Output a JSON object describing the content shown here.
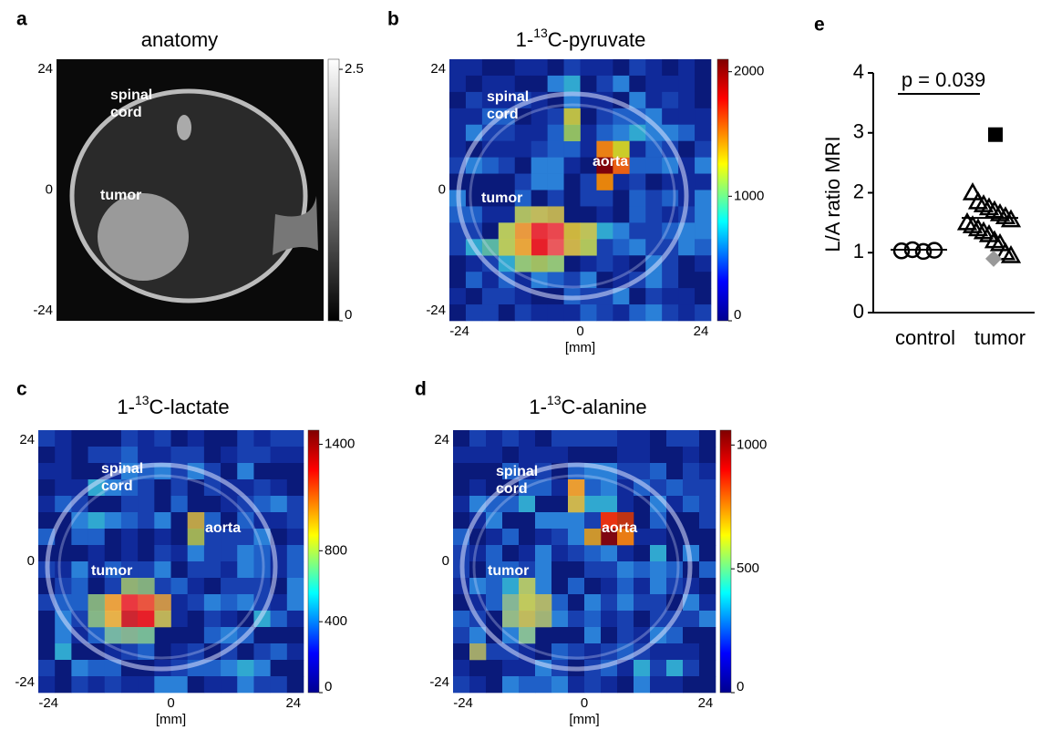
{
  "panels": [
    {
      "letter": "a",
      "title": {
        "prefix": "anatomy"
      },
      "extent": [
        -26,
        26
      ],
      "yticks": [
        24,
        0,
        -24
      ],
      "colorbar": {
        "range": [
          0,
          2.6
        ],
        "scale": "gray",
        "ticks": [
          2.5,
          0
        ]
      },
      "labels": [
        {
          "lines": [
            "spinal",
            "cord"
          ]
        },
        {
          "lines": [
            "tumor"
          ]
        }
      ]
    },
    {
      "letter": "b",
      "title": {
        "prefix": "1-",
        "superscript": "13",
        "suffix": "C-pyruvate"
      },
      "extent": [
        -26,
        26
      ],
      "yticks": [
        24,
        0,
        -24
      ],
      "xticks": [
        -24,
        0,
        24
      ],
      "xlabel": "[mm]",
      "colorbar": {
        "range": [
          0,
          2100
        ],
        "scale": "jet",
        "ticks": [
          2000,
          1000,
          0
        ]
      },
      "labels": [
        {
          "lines": [
            "spinal",
            "cord"
          ]
        },
        {
          "lines": [
            "aorta"
          ]
        },
        {
          "lines": [
            "tumor"
          ]
        }
      ]
    },
    {
      "letter": "c",
      "title": {
        "prefix": "1-",
        "superscript": "13",
        "suffix": "C-lactate"
      },
      "extent": [
        -26,
        26
      ],
      "yticks": [
        24,
        0,
        -24
      ],
      "xticks": [
        -24,
        0,
        24
      ],
      "xlabel": "[mm]",
      "colorbar": {
        "range": [
          0,
          1480
        ],
        "scale": "jet",
        "ticks": [
          1400,
          800,
          400,
          0
        ]
      },
      "labels": [
        {
          "lines": [
            "spinal",
            "cord"
          ]
        },
        {
          "lines": [
            "aorta"
          ]
        },
        {
          "lines": [
            "tumor"
          ]
        }
      ]
    },
    {
      "letter": "d",
      "title": {
        "prefix": "1-",
        "superscript": "13",
        "suffix": "C-alanine"
      },
      "extent": [
        -26,
        26
      ],
      "yticks": [
        24,
        0,
        -24
      ],
      "xticks": [
        -24,
        0,
        24
      ],
      "xlabel": "[mm]",
      "colorbar": {
        "range": [
          0,
          1060
        ],
        "scale": "jet",
        "ticks": [
          1000,
          500,
          0
        ]
      },
      "labels": [
        {
          "lines": [
            "spinal",
            "cord"
          ]
        },
        {
          "lines": [
            "aorta"
          ]
        },
        {
          "lines": [
            "tumor"
          ]
        }
      ]
    }
  ],
  "chart_data": {
    "type": "scatter",
    "letter": "e",
    "ylabel": "L/A ratio MRI",
    "categories": [
      "control",
      "tumor"
    ],
    "ylim": [
      0,
      4
    ],
    "yticks": [
      0,
      1,
      2,
      3,
      4
    ],
    "series": [
      {
        "category": "control",
        "marker": "circle",
        "color": "#000000",
        "values": [
          1.03,
          1.05,
          1.02,
          1.04
        ]
      },
      {
        "category": "tumor",
        "marker": "triangle",
        "color": "#000000",
        "values": [
          2.0,
          1.85,
          1.8,
          1.75,
          1.7,
          1.65,
          1.6,
          1.55,
          1.5,
          1.45,
          1.4,
          1.35,
          1.3,
          1.2,
          1.15,
          1.0,
          0.95
        ]
      },
      {
        "category": "tumor",
        "marker": "square",
        "color": "#000000",
        "values": [
          2.97
        ]
      },
      {
        "category": "tumor",
        "marker": "diamond",
        "color": "#999999",
        "values": [
          0.9
        ]
      }
    ],
    "medians": [
      1.05,
      1.58
    ],
    "annotation": {
      "text": "p = 0.039",
      "y": 3.65
    }
  }
}
